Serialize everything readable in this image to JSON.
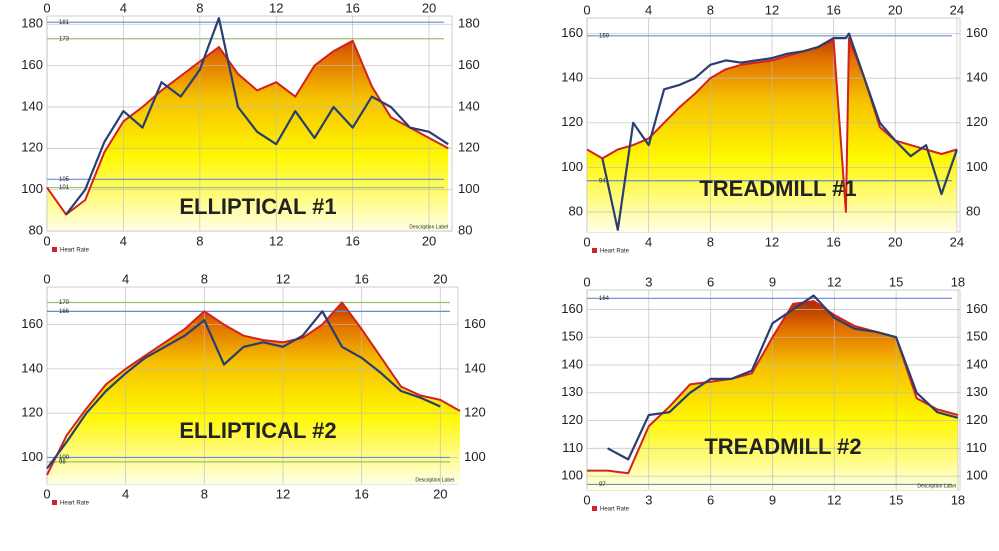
{
  "chart_data": [
    {
      "type": "area",
      "title": "ELLIPTICAL #1",
      "legend_label": "Heart Rate",
      "description_label": "Description Label",
      "x": [
        0,
        1,
        2,
        3,
        4,
        5,
        6,
        7,
        8,
        9,
        10,
        11,
        12,
        13,
        14,
        15,
        16,
        17,
        18,
        19,
        20,
        21
      ],
      "series": [
        {
          "name": "Heart Rate",
          "color": "#d42020",
          "values": [
            101,
            88,
            95,
            118,
            133,
            140,
            148,
            155,
            162,
            169,
            156,
            148,
            152,
            145,
            160,
            167,
            172,
            150,
            135,
            130,
            125,
            120
          ]
        },
        {
          "color": "#2a3f6e",
          "values": [
            null,
            88,
            100,
            123,
            138,
            130,
            152,
            145,
            158,
            183,
            140,
            128,
            122,
            138,
            125,
            140,
            130,
            145,
            140,
            130,
            128,
            122
          ]
        }
      ],
      "ref_lines": [
        {
          "value": 181,
          "color": "#6a8ccc"
        },
        {
          "value": 173,
          "color": "#9ac070"
        },
        {
          "value": 105,
          "color": "#6a8ccc"
        },
        {
          "value": 101,
          "color": "#9ac070"
        }
      ],
      "xlim": [
        0,
        21.2
      ],
      "xticks": [
        0,
        4,
        8,
        12,
        16,
        20
      ],
      "ylim": [
        80,
        184
      ],
      "yticks": [
        80,
        100,
        120,
        140,
        160,
        180
      ],
      "grid": true
    },
    {
      "type": "area",
      "title": "TREADMILL #1",
      "legend_label": "Heart Rate",
      "x": [
        0,
        1,
        2,
        3,
        4,
        5,
        6,
        7,
        8,
        9,
        10,
        11,
        12,
        13,
        14,
        15,
        16,
        16.8,
        17,
        18,
        19,
        20,
        21,
        22,
        23,
        24
      ],
      "series": [
        {
          "name": "Heart Rate",
          "color": "#d42020",
          "values": [
            108,
            104,
            108,
            110,
            113,
            120,
            127,
            133,
            140,
            144,
            146,
            147,
            148,
            150,
            152,
            154,
            157,
            80,
            158,
            140,
            118,
            112,
            110,
            108,
            106,
            108
          ]
        },
        {
          "color": "#2a3f6e",
          "values": [
            null,
            104,
            72,
            120,
            110,
            135,
            137,
            140,
            146,
            148,
            147,
            148,
            149,
            151,
            152,
            154,
            158,
            158,
            160,
            140,
            120,
            112,
            105,
            110,
            88,
            108
          ]
        }
      ],
      "ref_lines": [
        {
          "value": 159,
          "color": "#6a8ccc"
        },
        {
          "value": 94,
          "color": "#6a8ccc"
        }
      ],
      "xlim": [
        0,
        24.2
      ],
      "xticks": [
        0,
        4,
        8,
        12,
        16,
        20,
        24
      ],
      "ylim": [
        71,
        167
      ],
      "yticks": [
        80,
        100,
        120,
        140,
        160
      ],
      "grid": true
    },
    {
      "type": "area",
      "title": "ELLIPTICAL #2",
      "legend_label": "Heart Rate",
      "description_label": "Description Label",
      "x": [
        0,
        1,
        2,
        3,
        4,
        5,
        6,
        7,
        8,
        9,
        10,
        11,
        12,
        13,
        14,
        15,
        16,
        17,
        18,
        19,
        20,
        21
      ],
      "series": [
        {
          "name": "Heart Rate",
          "color": "#d42020",
          "values": [
            92,
            110,
            122,
            133,
            140,
            146,
            152,
            158,
            166,
            160,
            155,
            153,
            152,
            154,
            160,
            170,
            158,
            145,
            132,
            128,
            126,
            121
          ]
        },
        {
          "color": "#2a3f6e",
          "values": [
            95,
            107,
            120,
            130,
            138,
            145,
            150,
            155,
            162,
            142,
            150,
            152,
            150,
            155,
            166,
            150,
            145,
            138,
            130,
            127,
            123,
            null
          ]
        }
      ],
      "ref_lines": [
        {
          "value": 170,
          "color": "#9ac070"
        },
        {
          "value": 166,
          "color": "#6a8ccc"
        },
        {
          "value": 100,
          "color": "#6a8ccc"
        },
        {
          "value": 98,
          "color": "#9ac070"
        }
      ],
      "xlim": [
        0,
        20.9
      ],
      "xticks": [
        0,
        4,
        8,
        12,
        16,
        20
      ],
      "ylim": [
        88,
        177
      ],
      "yticks": [
        100,
        120,
        140,
        160
      ],
      "grid": true
    },
    {
      "type": "area",
      "title": "TREADMILL #2",
      "legend_label": "Heart Rate",
      "description_label": "Description Label",
      "x": [
        0,
        1,
        2,
        3,
        4,
        5,
        6,
        7,
        8,
        9,
        10,
        11,
        12,
        13,
        14,
        15,
        16,
        17,
        18
      ],
      "series": [
        {
          "name": "Heart Rate",
          "color": "#d42020",
          "values": [
            102,
            102,
            101,
            118,
            125,
            133,
            134,
            135,
            137,
            150,
            162,
            163,
            158,
            154,
            152,
            150,
            128,
            124,
            122
          ]
        },
        {
          "color": "#2a3f6e",
          "values": [
            null,
            110,
            106,
            122,
            123,
            130,
            135,
            135,
            138,
            155,
            160,
            165,
            157,
            153,
            152,
            150,
            130,
            123,
            121
          ]
        }
      ],
      "ref_lines": [
        {
          "value": 164,
          "color": "#6a8ccc"
        },
        {
          "value": 97,
          "color": "#6a8ccc"
        }
      ],
      "xlim": [
        0,
        18.1
      ],
      "xticks": [
        0,
        3,
        6,
        9,
        12,
        15,
        18
      ],
      "ylim": [
        95,
        167
      ],
      "yticks": [
        100,
        110,
        120,
        130,
        140,
        150,
        160
      ],
      "grid": true
    }
  ]
}
